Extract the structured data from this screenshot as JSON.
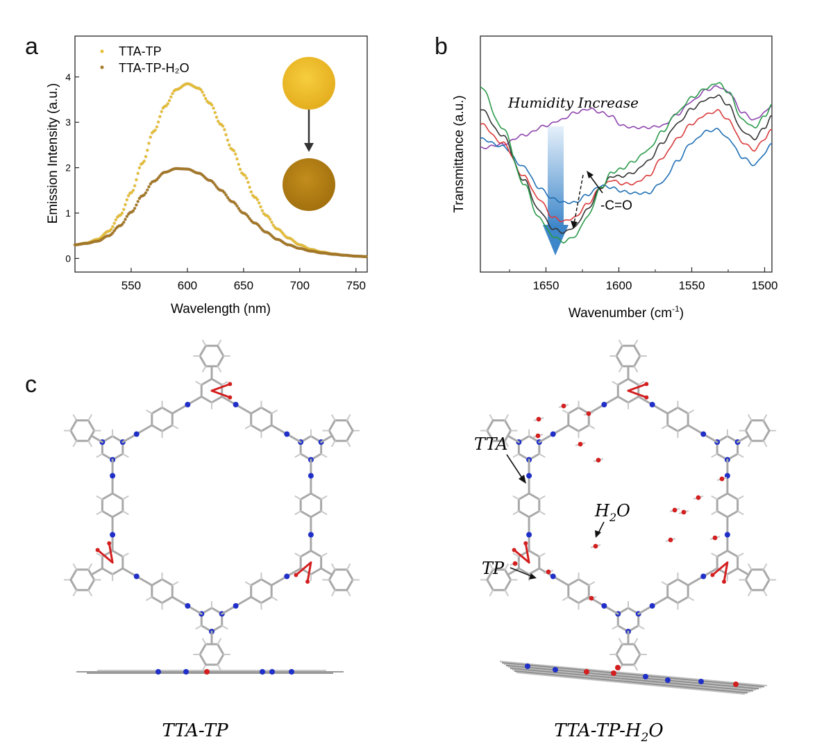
{
  "panels": {
    "a": "a",
    "b": "b",
    "c": "c"
  },
  "colors": {
    "ttatp": "#e8c03a",
    "ttatp_h2o": "#a77a2a",
    "spectra": [
      "#8e44ad",
      "#1f6fb4",
      "#d93a3a",
      "#333333",
      "#2a9a4a"
    ],
    "arrow_blue": "#3d86c9",
    "N": "#1f2fc8",
    "O": "#d31f1f",
    "C": "#a8a8a8"
  },
  "chart_data": [
    {
      "type": "scatter",
      "panel": "a",
      "xlabel": "Wavelength (nm)",
      "ylabel": "Emission Intensity (a.u.)",
      "xlim": [
        500,
        760
      ],
      "ylim": [
        -0.3,
        4.9
      ],
      "xticks": [
        550,
        600,
        650,
        700,
        750
      ],
      "yticks": [
        0,
        1,
        2,
        3,
        4
      ],
      "legend_position": "top-left",
      "legend": [
        "TTA-TP",
        "TTA-TP-H₂O"
      ],
      "series": [
        {
          "name": "TTA-TP",
          "color_key": "ttatp",
          "x": [
            500,
            510,
            520,
            530,
            540,
            550,
            560,
            570,
            580,
            590,
            600,
            610,
            620,
            630,
            640,
            650,
            660,
            670,
            680,
            690,
            700,
            710,
            720,
            730,
            740,
            750,
            760
          ],
          "y": [
            0.3,
            0.34,
            0.42,
            0.6,
            0.95,
            1.45,
            2.1,
            2.8,
            3.35,
            3.72,
            3.85,
            3.75,
            3.42,
            2.95,
            2.4,
            1.85,
            1.35,
            0.95,
            0.65,
            0.45,
            0.3,
            0.2,
            0.14,
            0.1,
            0.07,
            0.05,
            0.04
          ]
        },
        {
          "name": "TTA-TP-H₂O",
          "color_key": "ttatp_h2o",
          "x": [
            500,
            510,
            520,
            530,
            540,
            550,
            560,
            570,
            580,
            590,
            600,
            610,
            620,
            630,
            640,
            650,
            660,
            670,
            680,
            690,
            700,
            710,
            720,
            730,
            740,
            750,
            760
          ],
          "y": [
            0.3,
            0.33,
            0.38,
            0.5,
            0.72,
            1.02,
            1.38,
            1.7,
            1.9,
            1.98,
            1.97,
            1.88,
            1.72,
            1.5,
            1.25,
            1.0,
            0.78,
            0.58,
            0.42,
            0.3,
            0.22,
            0.16,
            0.12,
            0.09,
            0.07,
            0.05,
            0.04
          ]
        }
      ]
    },
    {
      "type": "line",
      "panel": "b",
      "xlabel": "Wavenumber (cm⁻¹)",
      "xlabel_main": "Wavenumber (cm",
      "xlabel_sup": "-1",
      "xlabel_close": ")",
      "ylabel": "Transmittance (a.u.)",
      "xlim": [
        1695,
        1495
      ],
      "xticks": [
        1650,
        1600,
        1550,
        1500
      ],
      "x_reversed": true,
      "annotations": [
        "Humidity Increase",
        "-C=O"
      ],
      "series": [
        {
          "color_index": 0,
          "x": [
            1695,
            1680,
            1665,
            1650,
            1640,
            1630,
            1620,
            1612,
            1605,
            1598,
            1590,
            1580,
            1570,
            1560,
            1550,
            1540,
            1532,
            1525,
            1515,
            1507,
            1500,
            1495
          ],
          "y": [
            0.45,
            0.43,
            0.38,
            0.33,
            0.3,
            0.26,
            0.24,
            0.26,
            0.28,
            0.33,
            0.34,
            0.34,
            0.33,
            0.27,
            0.2,
            0.14,
            0.12,
            0.15,
            0.26,
            0.3,
            0.26,
            0.22
          ]
        },
        {
          "color_index": 1,
          "x": [
            1695,
            1680,
            1665,
            1655,
            1645,
            1638,
            1630,
            1622,
            1612,
            1605,
            1598,
            1590,
            1580,
            1570,
            1560,
            1550,
            1540,
            1532,
            1525,
            1515,
            1507,
            1500,
            1495
          ],
          "y": [
            0.4,
            0.44,
            0.55,
            0.66,
            0.72,
            0.74,
            0.74,
            0.7,
            0.65,
            0.66,
            0.68,
            0.69,
            0.69,
            0.63,
            0.52,
            0.42,
            0.36,
            0.35,
            0.4,
            0.5,
            0.54,
            0.48,
            0.42
          ]
        },
        {
          "color_index": 2,
          "x": [
            1695,
            1680,
            1665,
            1655,
            1645,
            1638,
            1630,
            1622,
            1612,
            1605,
            1598,
            1590,
            1580,
            1570,
            1560,
            1550,
            1540,
            1532,
            1525,
            1515,
            1507,
            1500,
            1495
          ],
          "y": [
            0.32,
            0.42,
            0.6,
            0.72,
            0.82,
            0.84,
            0.82,
            0.75,
            0.66,
            0.62,
            0.64,
            0.64,
            0.6,
            0.5,
            0.4,
            0.32,
            0.27,
            0.25,
            0.3,
            0.42,
            0.46,
            0.4,
            0.35
          ]
        },
        {
          "color_index": 3,
          "x": [
            1695,
            1680,
            1665,
            1655,
            1645,
            1638,
            1630,
            1622,
            1612,
            1605,
            1598,
            1590,
            1580,
            1570,
            1560,
            1550,
            1540,
            1532,
            1525,
            1515,
            1507,
            1500,
            1495
          ],
          "y": [
            0.24,
            0.38,
            0.62,
            0.78,
            0.88,
            0.9,
            0.87,
            0.78,
            0.66,
            0.6,
            0.6,
            0.58,
            0.52,
            0.42,
            0.32,
            0.24,
            0.19,
            0.17,
            0.22,
            0.36,
            0.4,
            0.34,
            0.28
          ]
        },
        {
          "color_index": 4,
          "x": [
            1695,
            1680,
            1665,
            1655,
            1645,
            1638,
            1630,
            1622,
            1612,
            1605,
            1598,
            1590,
            1580,
            1570,
            1560,
            1550,
            1540,
            1532,
            1525,
            1515,
            1507,
            1500,
            1495
          ],
          "y": [
            0.12,
            0.34,
            0.64,
            0.82,
            0.92,
            0.95,
            0.92,
            0.82,
            0.66,
            0.58,
            0.56,
            0.52,
            0.46,
            0.36,
            0.26,
            0.18,
            0.13,
            0.1,
            0.15,
            0.3,
            0.34,
            0.28,
            0.22
          ]
        }
      ]
    }
  ],
  "panel_c": {
    "labels": {
      "left": "TTA-TP",
      "right_main": "TTA-TP-H",
      "right_sub": "2",
      "right_end": "O",
      "tta": "TTA",
      "tp": "TP",
      "h2o_main": "H",
      "h2o_sub": "2",
      "h2o_end": "O"
    }
  }
}
